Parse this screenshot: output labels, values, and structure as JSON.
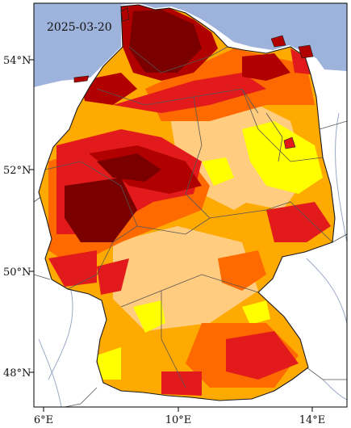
{
  "map": {
    "date_label": "2025-03-20",
    "lat_ticks": [
      "54°N",
      "52°N",
      "50°N",
      "48°N"
    ],
    "lon_ticks": [
      "6°E",
      "10°E",
      "14°E"
    ],
    "colors": {
      "sea": "#9db3dc",
      "land_outside": "#ffffff",
      "river": "#9aa9c6",
      "border": "#2b2b2b",
      "class_1": "#ffff00",
      "class_2": "#ffcc80",
      "class_3": "#ffaa00",
      "class_4": "#ff6a00",
      "class_5": "#e31a1c",
      "class_6": "#b10000",
      "class_7": "#7a0000"
    }
  }
}
